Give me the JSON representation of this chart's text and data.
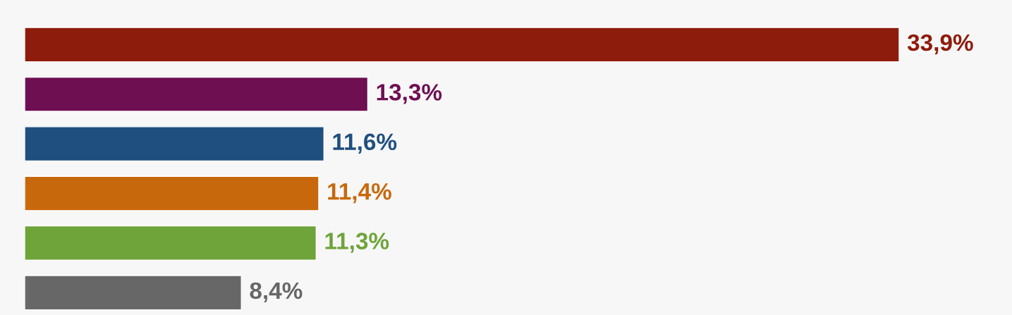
{
  "chart_data": {
    "type": "bar",
    "orientation": "horizontal",
    "categories": [
      null,
      null,
      null,
      null,
      null,
      null
    ],
    "values": [
      33.9,
      13.3,
      11.6,
      11.4,
      11.3,
      8.4
    ],
    "colors": [
      "#8e1c0c",
      "#6e0f52",
      "#1f4f7e",
      "#c8680c",
      "#6ea43a",
      "#676767"
    ],
    "value_labels": [
      "33,9%",
      "13,3%",
      "11,6%",
      "11,4%",
      "11,3%",
      "8,4%"
    ]
  }
}
